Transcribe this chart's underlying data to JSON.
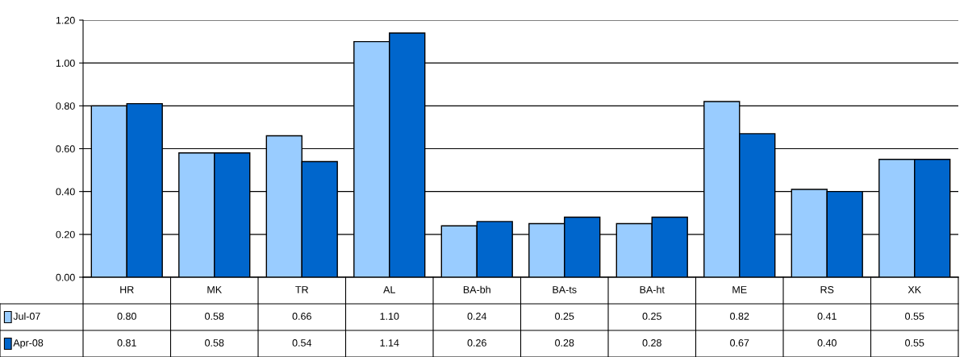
{
  "chart_data": {
    "type": "bar",
    "categories": [
      "HR",
      "MK",
      "TR",
      "AL",
      "BA-bh",
      "BA-ts",
      "BA-ht",
      "ME",
      "RS",
      "XK"
    ],
    "series": [
      {
        "name": "Jul-07",
        "color": "#99ccff",
        "values": [
          0.8,
          0.58,
          0.66,
          1.1,
          0.24,
          0.25,
          0.25,
          0.82,
          0.41,
          0.55
        ],
        "value_labels": [
          "0.80",
          "0.58",
          "0.66",
          "1.10",
          "0.24",
          "0.25",
          "0.25",
          "0.82",
          "0.41",
          "0.55"
        ]
      },
      {
        "name": "Apr-08",
        "color": "#0066cc",
        "values": [
          0.81,
          0.58,
          0.54,
          1.14,
          0.26,
          0.28,
          0.28,
          0.67,
          0.4,
          0.55
        ],
        "value_labels": [
          "0.81",
          "0.58",
          "0.54",
          "1.14",
          "0.26",
          "0.28",
          "0.28",
          "0.67",
          "0.40",
          "0.55"
        ]
      }
    ],
    "ylim": [
      0,
      1.2
    ],
    "yticks": [
      {
        "value": 0,
        "label": "0.00"
      },
      {
        "value": 0.2,
        "label": "0.20"
      },
      {
        "value": 0.4,
        "label": "0.40"
      },
      {
        "value": 0.6,
        "label": "0.60"
      },
      {
        "value": 0.8,
        "label": "0.80"
      },
      {
        "value": 1.0,
        "label": "1.00"
      },
      {
        "value": 1.2,
        "label": "1.20"
      }
    ],
    "grid": "y",
    "legend": "bottom left"
  }
}
